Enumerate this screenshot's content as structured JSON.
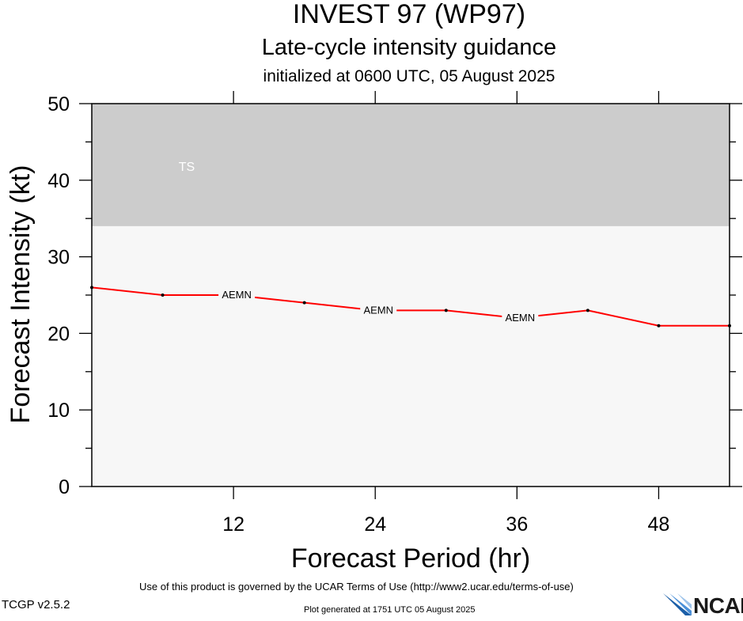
{
  "title": "INVEST 97 (WP97)",
  "subtitle": "Late-cycle intensity guidance",
  "init_line": "initialized at 0600 UTC, 05 August 2025",
  "footer": {
    "terms": "Use of this product is governed by the UCAR Terms of Use (http://www2.ucar.edu/terms-of-use)",
    "version": "TCGP v2.5.2",
    "generated": "Plot generated at 1751 UTC   05 August 2025",
    "logo_text": "NCAR"
  },
  "colors": {
    "ts_band": "#cccccc",
    "plot_bg": "#f7f7f7",
    "series_line": "#ff0000",
    "ts_label": "#ffffff"
  },
  "chart_data": {
    "type": "line",
    "xlabel": "Forecast Period (hr)",
    "ylabel": "Forecast Intensity (kt)",
    "xlim": [
      0,
      54
    ],
    "ylim": [
      0,
      50
    ],
    "xticks": [
      12,
      24,
      36,
      48
    ],
    "yticks": [
      0,
      10,
      20,
      30,
      40,
      50
    ],
    "grid": false,
    "bands": [
      {
        "label": "TS",
        "from": 34,
        "to": 50
      }
    ],
    "series": [
      {
        "name": "AEMN",
        "x": [
          0,
          6,
          12,
          18,
          24,
          30,
          36,
          42,
          48,
          54
        ],
        "y": [
          26,
          25,
          25,
          24,
          23,
          23,
          22,
          23,
          21,
          21
        ],
        "label_positions_x": [
          12,
          24,
          36
        ]
      }
    ]
  }
}
